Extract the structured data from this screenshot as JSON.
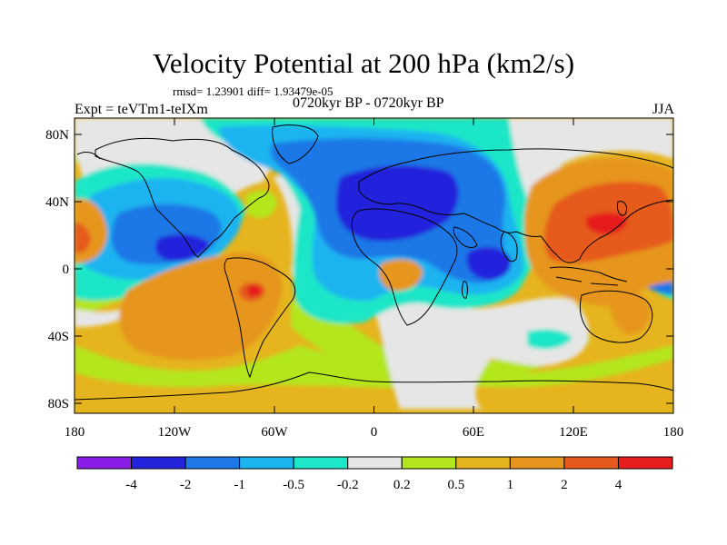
{
  "title": "Velocity Potential at 200 hPa (km2/s)",
  "stats": "rmsd= 1.23901 diff= 1.93479e-05",
  "experiment": "Expt = teVTm1-teIXm",
  "period": "0720kyr BP - 0720kyr BP",
  "season": "JJA",
  "colors": {
    "c_lt_m4": "#8a1ee6",
    "c_m4_m2": "#2323dc",
    "c_m2_m1": "#1e78e6",
    "c_m1_m05": "#1eb4f0",
    "c_m05_m02": "#1ee6c8",
    "c_m02_02": "#e6e6e6",
    "c_02_05": "#b4e61e",
    "c_05_1": "#e6b41e",
    "c_1_2": "#e6961e",
    "c_2_4": "#e65a1e",
    "c_gt_4": "#e61e1e",
    "coast": "#000000"
  },
  "map": {
    "lat_labels": [
      "80N",
      "40N",
      "0",
      "40S",
      "80S"
    ],
    "lon_labels": [
      "180",
      "120W",
      "60W",
      "0",
      "60E",
      "120E",
      "180"
    ]
  },
  "colorbar": {
    "labels": [
      "-4",
      "-2",
      "-1",
      "-0.5",
      "-0.2",
      "0.2",
      "0.5",
      "1",
      "2",
      "4"
    ],
    "levels": [
      -4,
      -2,
      -1,
      -0.5,
      -0.2,
      0.2,
      0.5,
      1,
      2,
      4
    ]
  }
}
